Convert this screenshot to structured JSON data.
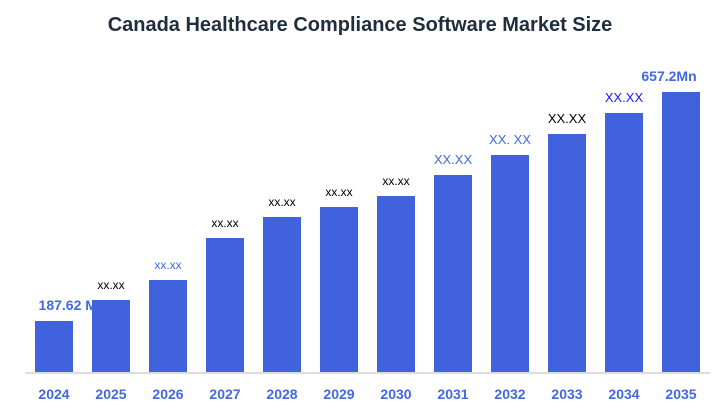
{
  "chart_data": {
    "type": "bar",
    "title": "Canada Healthcare Compliance Software Market Size",
    "xlabel": "",
    "ylabel": "",
    "categories": [
      "2024",
      "2025",
      "2026",
      "2027",
      "2028",
      "2029",
      "2030",
      "2031",
      "2032",
      "2033",
      "2034",
      "2035"
    ],
    "values": [
      187.62,
      230.7,
      271.7,
      357.8,
      400.9,
      421.4,
      443.9,
      487.0,
      528.0,
      571.1,
      614.1,
      657.2
    ],
    "data_labels": [
      "187.62 Mn",
      "xx.xx",
      "xx.xx",
      "xx.xx",
      "xx.xx",
      "xx.xx",
      "xx.xx",
      "XX.XX",
      "XX. XX",
      "XX.XX",
      "XX.XX",
      "657.2Mn"
    ],
    "label_colors": [
      "#4169e1",
      "#000000",
      "#4169e1",
      "#000000",
      "#000000",
      "#000000",
      "#000000",
      "#4169e1",
      "#4169e1",
      "#000000",
      "#1a1aff",
      "#4169e1"
    ],
    "ylim": [
      83.04,
      657.2
    ],
    "grid": false,
    "legend": "none",
    "bar_color": "#4062dc",
    "tick_color": "#4169e1"
  }
}
